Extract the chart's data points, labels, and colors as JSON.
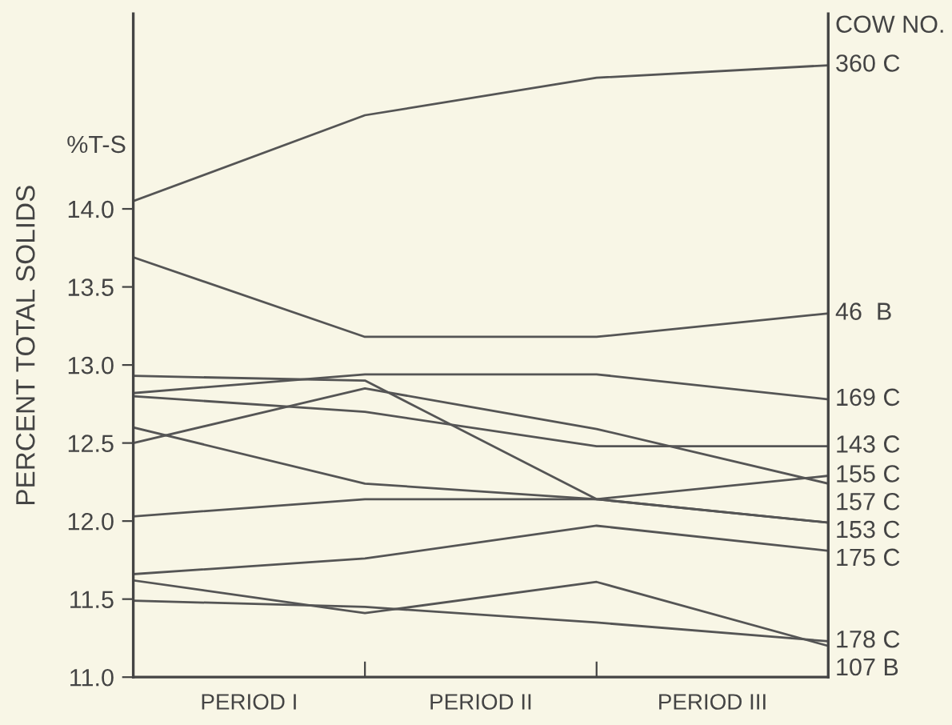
{
  "chart_data": {
    "type": "line",
    "ylabel": "PERCENT TOTAL SOLIDS",
    "annotations": [
      "%T-S",
      "COW NO.",
      "PERIOD I",
      "PERIOD II",
      "PERIOD III"
    ],
    "categories": [
      null,
      null,
      null,
      null
    ],
    "ylim": [
      11,
      15.25
    ],
    "yticks": [
      {
        "value": 11,
        "label": "11.0"
      },
      {
        "value": 11.5,
        "label": "11.5"
      },
      {
        "value": 12,
        "label": "12.0"
      },
      {
        "value": 12.5,
        "label": "12.5"
      },
      {
        "value": 13,
        "label": "13.0"
      },
      {
        "value": 13.5,
        "label": "13.5"
      },
      {
        "value": 14,
        "label": "14.0"
      }
    ],
    "grid": false,
    "legend": false,
    "marker": "none",
    "line_style": "solid",
    "series": [
      {
        "name": "360 C",
        "color": "#555555",
        "values": [
          14.05,
          14.6,
          14.84,
          14.92
        ]
      },
      {
        "name": "46  B",
        "color": "#555555",
        "values": [
          13.69,
          13.18,
          13.18,
          13.33
        ]
      },
      {
        "name": "169 C",
        "color": "#555555",
        "values": [
          12.82,
          12.94,
          12.94,
          12.78
        ]
      },
      {
        "name": "143 C",
        "color": "#555555",
        "values": [
          12.8,
          12.7,
          12.48,
          12.48
        ]
      },
      {
        "name": "155 C",
        "color": "#555555",
        "values": [
          12.6,
          12.24,
          12.14,
          12.29
        ]
      },
      {
        "name": "157 C",
        "color": "#555555",
        "values": [
          12.5,
          12.85,
          12.59,
          12.24
        ]
      },
      {
        "name": "153 C",
        "color": "#555555",
        "values": [
          12.93,
          12.9,
          12.14,
          11.99
        ]
      },
      {
        "color": "#555555",
        "values": [
          12.03,
          12.14,
          12.14,
          11.99
        ]
      },
      {
        "name": "175 C",
        "color": "#555555",
        "values": [
          11.66,
          11.76,
          11.97,
          11.81
        ]
      },
      {
        "name": "178 C",
        "color": "#555555",
        "values": [
          11.49,
          11.45,
          11.35,
          11.23
        ]
      },
      {
        "name": "107 B",
        "color": "#555555",
        "values": [
          11.62,
          11.41,
          11.61,
          11.2
        ]
      }
    ]
  }
}
